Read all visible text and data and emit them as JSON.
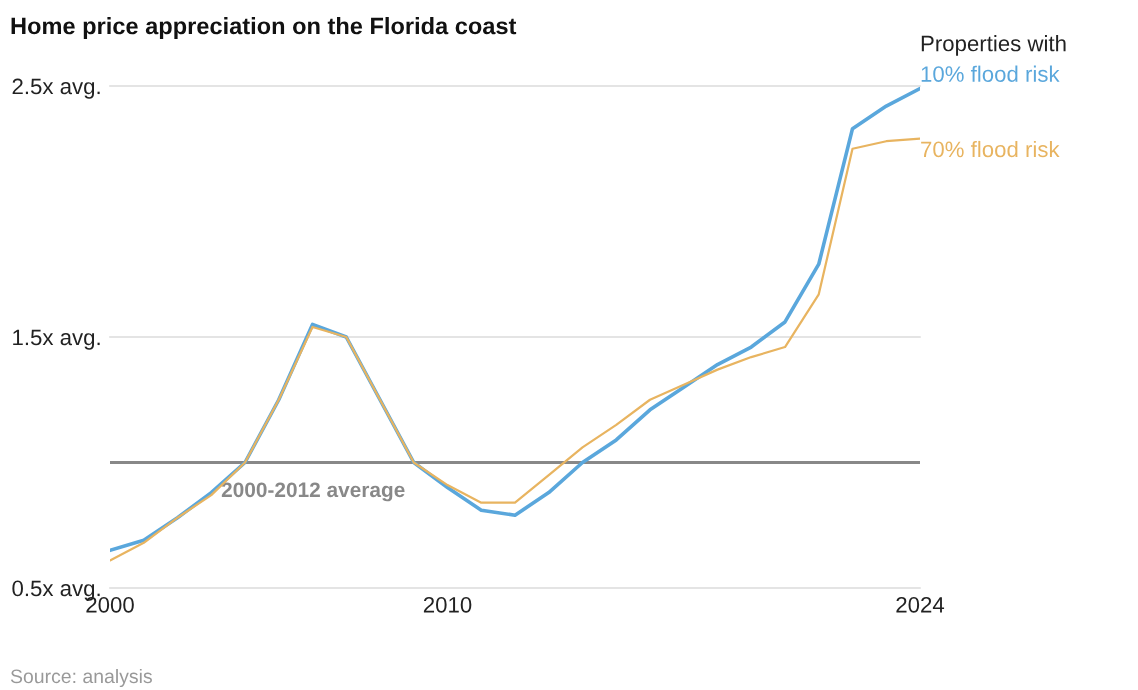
{
  "chart_data": {
    "type": "line",
    "title": "Home price appreciation on the Florida coast",
    "legend_title": "Properties with",
    "x": [
      2000,
      2001,
      2002,
      2003,
      2004,
      2005,
      2006,
      2007,
      2008,
      2009,
      2010,
      2011,
      2012,
      2013,
      2014,
      2015,
      2016,
      2017,
      2018,
      2019,
      2020,
      2021,
      2022,
      2023,
      2024
    ],
    "series": [
      {
        "name": "10% flood risk",
        "color": "#5aa7dc",
        "values": [
          0.65,
          0.69,
          0.78,
          0.88,
          1.0,
          1.25,
          1.55,
          1.5,
          1.25,
          1.0,
          0.9,
          0.81,
          0.79,
          0.88,
          1.0,
          1.09,
          1.21,
          1.3,
          1.39,
          1.46,
          1.56,
          1.79,
          2.33,
          2.42,
          2.49
        ]
      },
      {
        "name": "70% flood risk",
        "color": "#e8b460",
        "values": [
          0.61,
          0.68,
          0.78,
          0.87,
          1.0,
          1.25,
          1.54,
          1.5,
          1.25,
          1.0,
          0.91,
          0.84,
          0.84,
          0.95,
          1.06,
          1.15,
          1.25,
          1.31,
          1.37,
          1.42,
          1.46,
          1.67,
          2.25,
          2.28,
          2.29
        ]
      }
    ],
    "xlim": [
      2000,
      2024
    ],
    "xticks": [
      2000,
      2010,
      2024
    ],
    "ylim": [
      0.5,
      2.5
    ],
    "yticks": [
      {
        "value": 0.5,
        "label": "0.5x avg."
      },
      {
        "value": 1.5,
        "label": "1.5x avg."
      },
      {
        "value": 2.5,
        "label": "2.5x avg."
      }
    ],
    "ref_lines": [
      {
        "axis": "y",
        "value": 1.0,
        "label": "2000-2012 average",
        "color": "#888888"
      }
    ],
    "grid": "y",
    "legend": "right",
    "marker": "none",
    "line_style": "solid",
    "annotations": [
      "Source: analysis"
    ]
  }
}
